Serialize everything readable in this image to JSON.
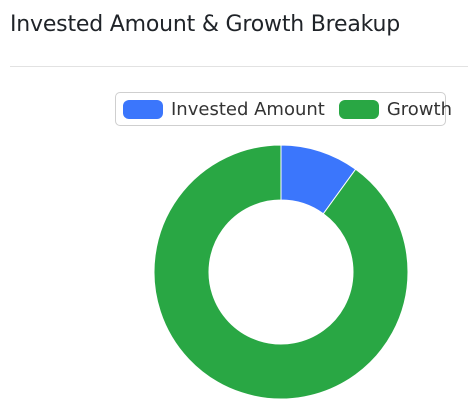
{
  "header": {
    "title": "Invested Amount & Growth Breakup"
  },
  "colors": {
    "invested": "#3b76fc",
    "growth": "#29a744",
    "hole": "#ffffff",
    "slice_border": "#ffffff"
  },
  "chart_data": {
    "type": "pie",
    "variant": "doughnut",
    "title": "",
    "categories": [
      "Invested Amount",
      "Growth"
    ],
    "values": [
      10,
      90
    ],
    "unit": "percent",
    "legend": "top-right",
    "series": [
      {
        "name": "Invested Amount",
        "value": 10,
        "color": "#3b76fc"
      },
      {
        "name": "Growth",
        "value": 90,
        "color": "#29a744"
      }
    ]
  }
}
